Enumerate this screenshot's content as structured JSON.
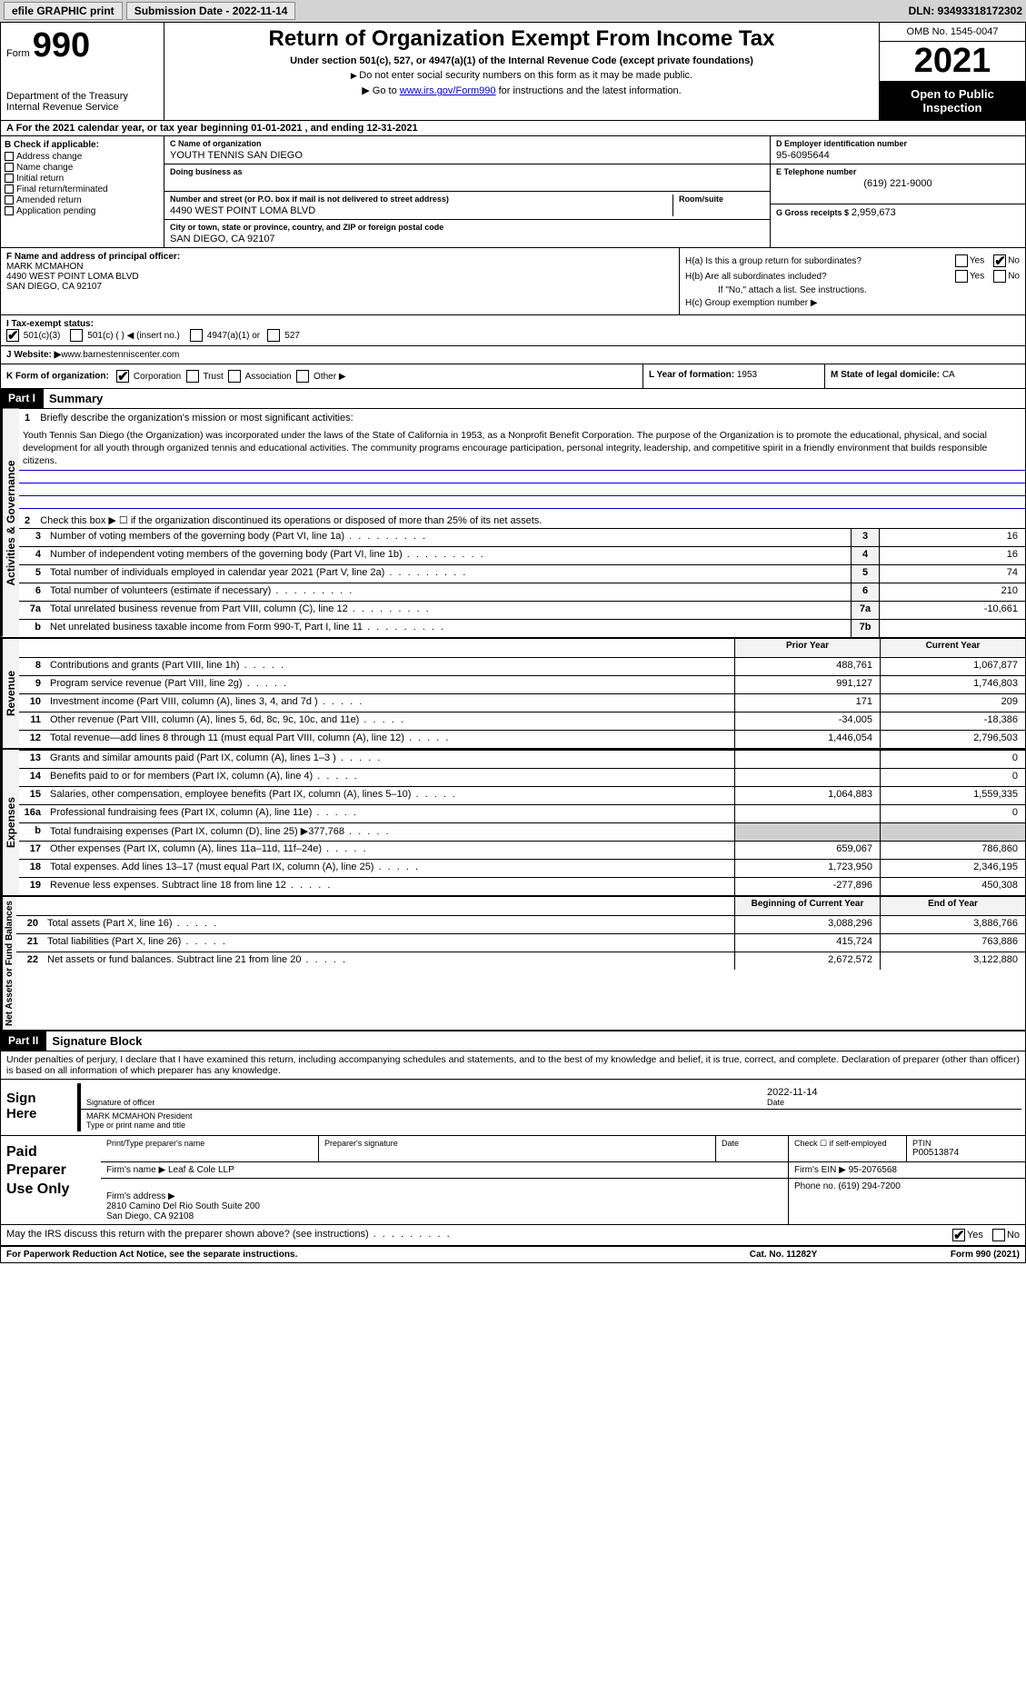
{
  "topbar": {
    "efile": "efile GRAPHIC print",
    "submission": "Submission Date - 2022-11-14",
    "dln": "DLN: 93493318172302"
  },
  "header": {
    "form_prefix": "Form",
    "form_num": "990",
    "dept": "Department of the Treasury\nInternal Revenue Service",
    "title": "Return of Organization Exempt From Income Tax",
    "subtitle": "Under section 501(c), 527, or 4947(a)(1) of the Internal Revenue Code (except private foundations)",
    "note1": "Do not enter social security numbers on this form as it may be made public.",
    "note2_pre": "Go to ",
    "note2_link": "www.irs.gov/Form990",
    "note2_post": " for instructions and the latest information.",
    "omb": "OMB No. 1545-0047",
    "year": "2021",
    "open": "Open to Public Inspection"
  },
  "row_a": "For the 2021 calendar year, or tax year beginning 01-01-2021     , and ending 12-31-2021",
  "col_b": {
    "hdr": "B Check if applicable:",
    "items": [
      "Address change",
      "Name change",
      "Initial return",
      "Final return/terminated",
      "Amended return",
      "Application pending"
    ]
  },
  "col_c": {
    "name_lbl": "C Name of organization",
    "name": "YOUTH TENNIS SAN DIEGO",
    "dba_lbl": "Doing business as",
    "dba": "",
    "street_lbl": "Number and street (or P.O. box if mail is not delivered to street address)",
    "street": "4490 WEST POINT LOMA BLVD",
    "room_lbl": "Room/suite",
    "city_lbl": "City or town, state or province, country, and ZIP or foreign postal code",
    "city": "SAN DIEGO, CA  92107"
  },
  "col_d": {
    "ein_lbl": "D Employer identification number",
    "ein": "95-6095644",
    "tel_lbl": "E Telephone number",
    "tel": "(619) 221-9000",
    "gross_lbl": "G Gross receipts $",
    "gross": "2,959,673"
  },
  "col_f": {
    "lbl": "F Name and address of principal officer:",
    "name": "MARK MCMAHON",
    "addr1": "4490 WEST POINT LOMA BLVD",
    "addr2": "SAN DIEGO, CA  92107"
  },
  "col_h": {
    "ha": "H(a)  Is this a group return for subordinates?",
    "hb": "H(b)  Are all subordinates included?",
    "hb_note": "If \"No,\" attach a list. See instructions.",
    "hc": "H(c)  Group exemption number ▶"
  },
  "row_i": {
    "lbl": "I   Tax-exempt status:",
    "opts": [
      "501(c)(3)",
      "501(c) (   ) ◀ (insert no.)",
      "4947(a)(1) or",
      "527"
    ]
  },
  "row_j": {
    "lbl": "J   Website: ▶",
    "val": " www.barnestenniscenter.com"
  },
  "row_k": {
    "lbl": "K Form of organization:",
    "opts": [
      "Corporation",
      "Trust",
      "Association",
      "Other ▶"
    ],
    "l_lbl": "L Year of formation:",
    "l_val": "1953",
    "m_lbl": "M State of legal domicile:",
    "m_val": "CA"
  },
  "part1": {
    "hdr": "Part I",
    "title": "Summary",
    "line1_lbl": "Briefly describe the organization's mission or most significant activities:",
    "mission": "Youth Tennis San Diego (the Organization) was incorporated under the laws of the State of California in 1953, as a Nonprofit Benefit Corporation. The purpose of the Organization is to promote the educational, physical, and social development for all youth through organized tennis and educational activities. The community programs encourage participation, personal integrity, leadership, and competitive spirit in a friendly environment that builds responsible citizens.",
    "line2": "Check this box ▶ ☐  if the organization discontinued its operations or disposed of more than 25% of its net assets.",
    "rows_single": [
      {
        "n": "3",
        "t": "Number of voting members of the governing body (Part VI, line 1a)",
        "b": "3",
        "v": "16"
      },
      {
        "n": "4",
        "t": "Number of independent voting members of the governing body (Part VI, line 1b)",
        "b": "4",
        "v": "16"
      },
      {
        "n": "5",
        "t": "Total number of individuals employed in calendar year 2021 (Part V, line 2a)",
        "b": "5",
        "v": "74"
      },
      {
        "n": "6",
        "t": "Total number of volunteers (estimate if necessary)",
        "b": "6",
        "v": "210"
      },
      {
        "n": "7a",
        "t": "Total unrelated business revenue from Part VIII, column (C), line 12",
        "b": "7a",
        "v": "-10,661"
      },
      {
        "n": "b",
        "t": "Net unrelated business taxable income from Form 990-T, Part I, line 11",
        "b": "7b",
        "v": ""
      }
    ],
    "col_prior": "Prior Year",
    "col_current": "Current Year",
    "revenue": [
      {
        "n": "8",
        "t": "Contributions and grants (Part VIII, line 1h)",
        "p": "488,761",
        "c": "1,067,877"
      },
      {
        "n": "9",
        "t": "Program service revenue (Part VIII, line 2g)",
        "p": "991,127",
        "c": "1,746,803"
      },
      {
        "n": "10",
        "t": "Investment income (Part VIII, column (A), lines 3, 4, and 7d )",
        "p": "171",
        "c": "209"
      },
      {
        "n": "11",
        "t": "Other revenue (Part VIII, column (A), lines 5, 6d, 8c, 9c, 10c, and 11e)",
        "p": "-34,005",
        "c": "-18,386"
      },
      {
        "n": "12",
        "t": "Total revenue—add lines 8 through 11 (must equal Part VIII, column (A), line 12)",
        "p": "1,446,054",
        "c": "2,796,503"
      }
    ],
    "expenses": [
      {
        "n": "13",
        "t": "Grants and similar amounts paid (Part IX, column (A), lines 1–3 )",
        "p": "",
        "c": "0"
      },
      {
        "n": "14",
        "t": "Benefits paid to or for members (Part IX, column (A), line 4)",
        "p": "",
        "c": "0"
      },
      {
        "n": "15",
        "t": "Salaries, other compensation, employee benefits (Part IX, column (A), lines 5–10)",
        "p": "1,064,883",
        "c": "1,559,335"
      },
      {
        "n": "16a",
        "t": "Professional fundraising fees (Part IX, column (A), line 11e)",
        "p": "",
        "c": "0"
      },
      {
        "n": "b",
        "t": "Total fundraising expenses (Part IX, column (D), line 25) ▶377,768",
        "p": "shaded",
        "c": "shaded"
      },
      {
        "n": "17",
        "t": "Other expenses (Part IX, column (A), lines 11a–11d, 11f–24e)",
        "p": "659,067",
        "c": "786,860"
      },
      {
        "n": "18",
        "t": "Total expenses. Add lines 13–17 (must equal Part IX, column (A), line 25)",
        "p": "1,723,950",
        "c": "2,346,195"
      },
      {
        "n": "19",
        "t": "Revenue less expenses. Subtract line 18 from line 12",
        "p": "-277,896",
        "c": "450,308"
      }
    ],
    "col_boy": "Beginning of Current Year",
    "col_eoy": "End of Year",
    "netassets": [
      {
        "n": "20",
        "t": "Total assets (Part X, line 16)",
        "p": "3,088,296",
        "c": "3,886,766"
      },
      {
        "n": "21",
        "t": "Total liabilities (Part X, line 26)",
        "p": "415,724",
        "c": "763,886"
      },
      {
        "n": "22",
        "t": "Net assets or fund balances. Subtract line 21 from line 20",
        "p": "2,672,572",
        "c": "3,122,880"
      }
    ]
  },
  "part2": {
    "hdr": "Part II",
    "title": "Signature Block",
    "decl": "Under penalties of perjury, I declare that I have examined this return, including accompanying schedules and statements, and to the best of my knowledge and belief, it is true, correct, and complete. Declaration of preparer (other than officer) is based on all information of which preparer has any knowledge.",
    "sign_here": "Sign Here",
    "sig_officer": "Signature of officer",
    "sig_date": "2022-11-14",
    "date_lbl": "Date",
    "officer_name": "MARK MCMAHON President",
    "type_lbl": "Type or print name and title",
    "paid": "Paid Preparer Use Only",
    "prep_name_lbl": "Print/Type preparer's name",
    "prep_sig_lbl": "Preparer's signature",
    "prep_date_lbl": "Date",
    "prep_check": "Check ☐ if self-employed",
    "ptin_lbl": "PTIN",
    "ptin": "P00513874",
    "firm_name_lbl": "Firm's name    ▶",
    "firm_name": "Leaf & Cole LLP",
    "firm_ein_lbl": "Firm's EIN ▶",
    "firm_ein": "95-2076568",
    "firm_addr_lbl": "Firm's address ▶",
    "firm_addr": "2810 Camino Del Rio South Suite 200\nSan Diego, CA  92108",
    "firm_phone_lbl": "Phone no.",
    "firm_phone": "(619) 294-7200",
    "may_irs": "May the IRS discuss this return with the preparer shown above? (see instructions)"
  },
  "footer": {
    "pra": "For Paperwork Reduction Act Notice, see the separate instructions.",
    "cat": "Cat. No. 11282Y",
    "form": "Form 990 (2021)"
  },
  "side_labels": {
    "ag": "Activities & Governance",
    "rev": "Revenue",
    "exp": "Expenses",
    "na": "Net Assets or Fund Balances"
  }
}
